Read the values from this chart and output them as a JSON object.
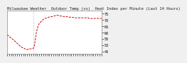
{
  "title": "Milwaukee Weather  Outdoor Temp (vs)  Heat Index per Minute (Last 24 Hours)",
  "background_color": "#f0f0f0",
  "plot_bg_color": "#ffffff",
  "line_color": "#cc0000",
  "vline_color": "#999999",
  "ytick_labels": [
    "75",
    "70",
    "65",
    "60",
    "55",
    "50",
    "45"
  ],
  "ytick_values": [
    75,
    70,
    65,
    60,
    55,
    50,
    45
  ],
  "ylim": [
    43,
    77
  ],
  "xlim": [
    0,
    1
  ],
  "title_fontsize": 4.0,
  "tick_fontsize": 3.5,
  "vline_x": 0.28,
  "x_data": [
    0.0,
    0.007,
    0.014,
    0.021,
    0.028,
    0.035,
    0.042,
    0.049,
    0.056,
    0.063,
    0.07,
    0.077,
    0.084,
    0.091,
    0.098,
    0.105,
    0.112,
    0.119,
    0.126,
    0.133,
    0.14,
    0.147,
    0.154,
    0.161,
    0.168,
    0.175,
    0.182,
    0.189,
    0.196,
    0.203,
    0.21,
    0.217,
    0.224,
    0.231,
    0.238,
    0.245,
    0.252,
    0.259,
    0.266,
    0.273,
    0.28,
    0.29,
    0.3,
    0.31,
    0.32,
    0.33,
    0.34,
    0.36,
    0.38,
    0.4,
    0.42,
    0.44,
    0.46,
    0.48,
    0.5,
    0.52,
    0.54,
    0.56,
    0.58,
    0.6,
    0.62,
    0.64,
    0.66,
    0.68,
    0.7,
    0.72,
    0.74,
    0.76,
    0.78,
    0.8,
    0.82,
    0.84,
    0.86,
    0.88,
    0.9,
    0.92,
    0.94,
    0.96,
    0.98,
    1.0
  ],
  "y_data": [
    57.5,
    57.8,
    57.5,
    57.0,
    56.5,
    56.0,
    55.5,
    55.0,
    54.8,
    54.5,
    54.0,
    53.5,
    53.0,
    52.5,
    52.0,
    51.5,
    51.0,
    50.5,
    50.0,
    49.5,
    49.0,
    48.8,
    48.5,
    48.0,
    47.8,
    47.5,
    47.5,
    47.0,
    46.8,
    46.5,
    46.5,
    46.5,
    46.8,
    47.0,
    47.2,
    47.0,
    47.0,
    47.0,
    47.2,
    47.5,
    47.5,
    50.0,
    55.0,
    60.0,
    63.0,
    65.5,
    67.0,
    68.5,
    70.0,
    71.0,
    71.5,
    72.0,
    72.3,
    72.5,
    73.0,
    73.5,
    73.5,
    73.0,
    72.8,
    72.5,
    72.5,
    72.3,
    72.0,
    72.0,
    71.8,
    71.5,
    71.5,
    71.5,
    71.5,
    71.5,
    71.5,
    71.5,
    71.3,
    71.0,
    71.0,
    71.0,
    71.0,
    71.0,
    71.0,
    71.0
  ]
}
